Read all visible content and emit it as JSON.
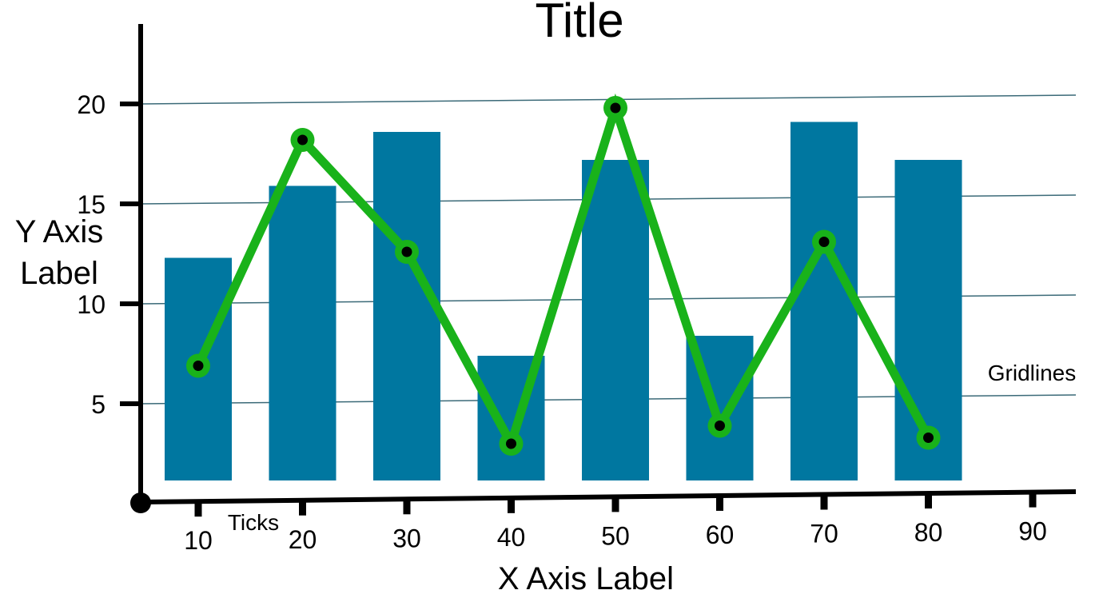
{
  "chart_data": {
    "type": "bar",
    "title": "Title",
    "xlabel": "X Axis Label",
    "ylabel": "Y Axis Label",
    "x_ticks": [
      "10",
      "20",
      "30",
      "40",
      "50",
      "60",
      "70",
      "80",
      "90"
    ],
    "y_ticks": [
      "5",
      "10",
      "15",
      "20"
    ],
    "ylim": [
      0,
      23
    ],
    "grid": true,
    "bar_color": "#0077a0",
    "line_color": "#19b21a",
    "marker_color": "#000000",
    "series": [
      {
        "type": "bar",
        "x": [
          10,
          20,
          30,
          40,
          50,
          60,
          70,
          80
        ],
        "values": [
          12.3,
          15.9,
          18.6,
          7.4,
          17.2,
          8.4,
          19.1,
          17.2
        ]
      },
      {
        "type": "line",
        "x": [
          10,
          20,
          30,
          40,
          50,
          60,
          70,
          80
        ],
        "values": [
          6.9,
          18.2,
          12.6,
          3.0,
          19.8,
          3.9,
          13.1,
          3.3
        ]
      }
    ],
    "annotations": [
      "Ticks",
      "Gridlines"
    ]
  }
}
